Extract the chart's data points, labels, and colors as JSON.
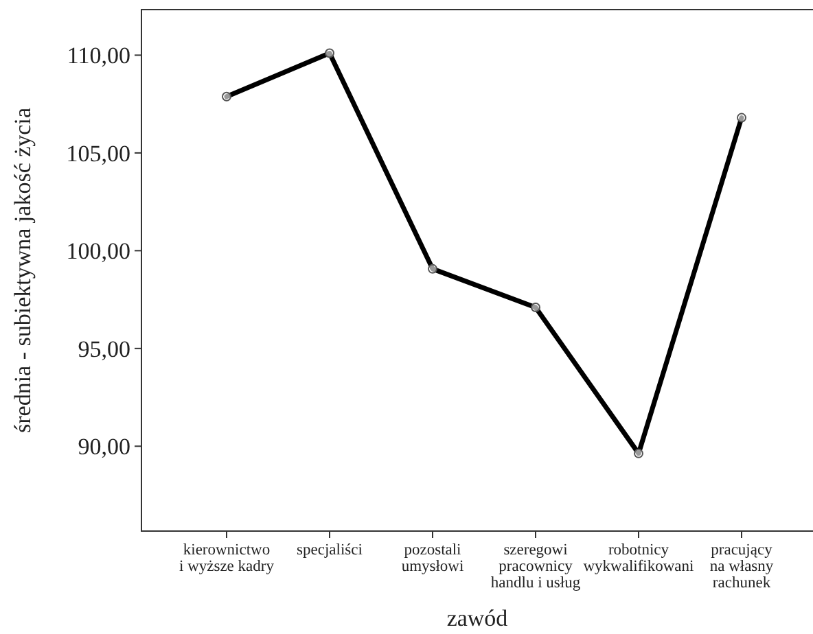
{
  "chart_data": {
    "type": "line",
    "xlabel": "zawód",
    "ylabel": "średnia - subiektywna jakość życia",
    "categories": [
      "kierownictwo\ni wyższe kadry",
      "specjaliści",
      "pozostali\numysłowi",
      "szeregowi\npracownicy\nhandlu i usług",
      "robotnicy\nwykwalifikowani",
      "pracujący\nna własny\nrachunek"
    ],
    "series": [
      {
        "color": "#000000",
        "values": [
          107.88,
          110.1,
          99.07,
          97.1,
          89.63,
          106.8
        ]
      }
    ],
    "ylim": [
      85.66,
      112.33
    ],
    "yticks": [
      {
        "value": 90,
        "label": "90,00"
      },
      {
        "value": 95,
        "label": "95,00"
      },
      {
        "value": 100,
        "label": "100,00"
      },
      {
        "value": 105,
        "label": "105,00"
      },
      {
        "value": 110,
        "label": "110,00"
      }
    ],
    "marker": "circle",
    "line_style": "solid"
  }
}
